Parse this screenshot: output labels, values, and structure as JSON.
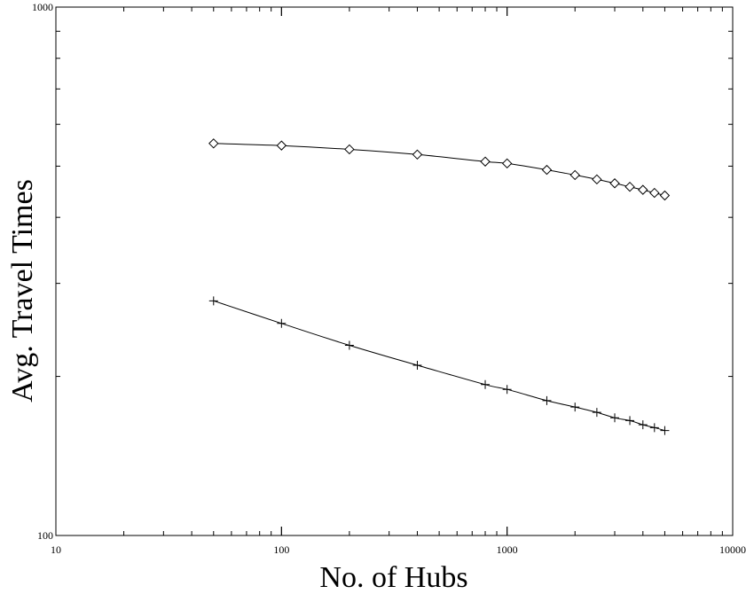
{
  "chart_data": {
    "type": "scatter",
    "title": "",
    "xlabel": "No. of Hubs",
    "ylabel": "Avg. Travel Times",
    "xscale": "log",
    "yscale": "log",
    "xlim": [
      10,
      10000
    ],
    "ylim": [
      100,
      1000
    ],
    "xticks": [
      {
        "value": 10,
        "label": "10"
      },
      {
        "value": 100,
        "label": "100"
      },
      {
        "value": 1000,
        "label": "1000"
      },
      {
        "value": 10000,
        "label": "10000"
      }
    ],
    "yticks": [
      {
        "value": 100,
        "label": "100"
      },
      {
        "value": 1000,
        "label": "1000"
      }
    ],
    "grid": false,
    "legend": "none",
    "series": [
      {
        "marker": "diamond",
        "fit_line": true,
        "x": [
          50,
          100,
          200,
          400,
          800,
          1000,
          1500,
          2000,
          2500,
          3000,
          3500,
          4000,
          4500,
          5000
        ],
        "y": [
          552,
          547,
          538,
          526,
          510,
          506,
          492,
          481,
          472,
          464,
          457,
          451,
          445,
          440
        ]
      },
      {
        "marker": "plus",
        "fit_line": true,
        "x": [
          50,
          100,
          200,
          400,
          800,
          1000,
          1500,
          2000,
          2500,
          3000,
          3500,
          4000,
          4500,
          5000
        ],
        "y": [
          278,
          252,
          229,
          210,
          193,
          189,
          180,
          175,
          171,
          167,
          165,
          162,
          160,
          158
        ]
      }
    ]
  }
}
